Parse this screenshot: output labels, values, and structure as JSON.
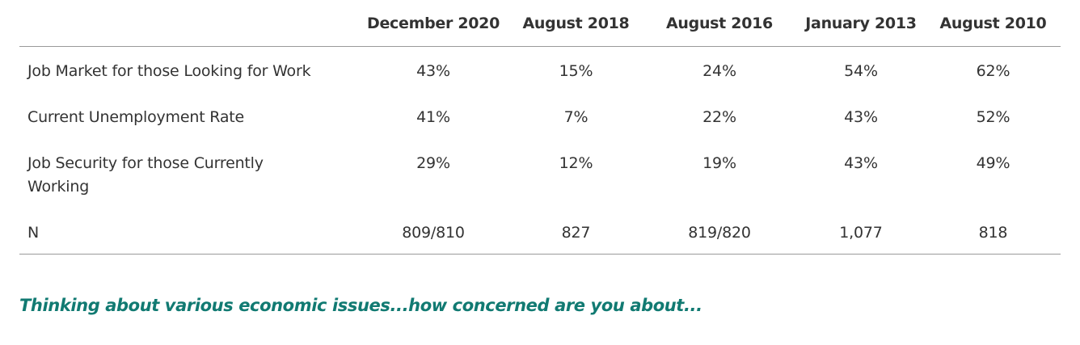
{
  "table": {
    "columns": [
      "December 2020",
      "August 2018",
      "August 2016",
      "January 2013",
      "August 2010"
    ],
    "rows": [
      {
        "label": "Job Market for those Looking for Work",
        "values": [
          "43%",
          "15%",
          "24%",
          "54%",
          "62%"
        ]
      },
      {
        "label": "Current Unemployment Rate",
        "values": [
          "41%",
          "7%",
          "22%",
          "43%",
          "52%"
        ]
      },
      {
        "label": "Job Security for those Currently Working",
        "values": [
          "29%",
          "12%",
          "19%",
          "43%",
          "49%"
        ]
      },
      {
        "label": "N",
        "values": [
          "809/810",
          "827",
          "819/820",
          "1,077",
          "818"
        ]
      }
    ]
  },
  "caption": "Thinking about various economic issues...how concerned are you about...",
  "colors": {
    "text": "#333333",
    "rule": "#9a9a9a",
    "caption": "#117a72"
  }
}
